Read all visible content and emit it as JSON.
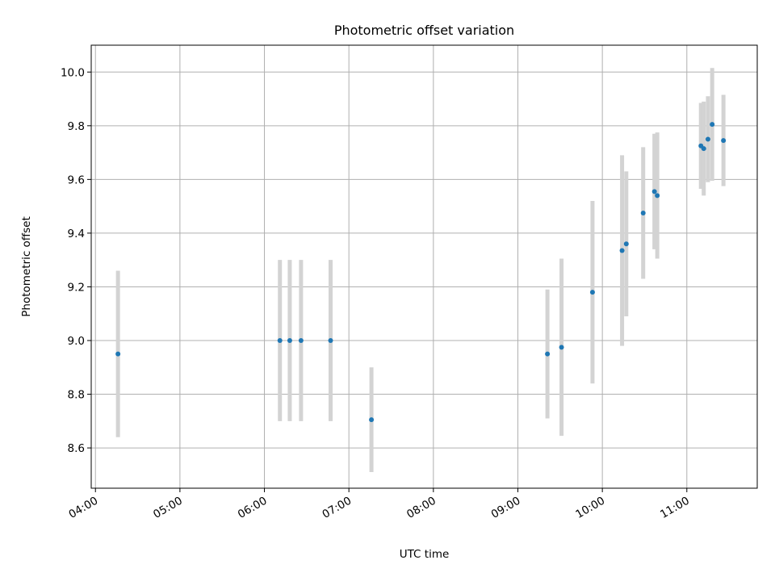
{
  "chart_data": {
    "type": "scatter",
    "title": "Photometric offset variation",
    "xlabel": "UTC time",
    "ylabel": "Photometric offset",
    "x_is_time": true,
    "xlim": [
      "03:57",
      "11:50"
    ],
    "ylim": [
      8.45,
      10.1
    ],
    "x_ticks": [
      "04:00",
      "05:00",
      "06:00",
      "07:00",
      "08:00",
      "09:00",
      "10:00",
      "11:00"
    ],
    "y_ticks": [
      8.6,
      8.8,
      9.0,
      9.2,
      9.4,
      9.6,
      9.8,
      10.0
    ],
    "y_tick_labels": [
      "8.6",
      "8.8",
      "9.0",
      "9.2",
      "9.4",
      "9.6",
      "9.8",
      "10.0"
    ],
    "grid": true,
    "x_tick_rotation_deg": 30,
    "colors": {
      "point": "#1f77b4",
      "errorbar": "#d3d3d3"
    },
    "series": [
      {
        "points": [
          {
            "x": "04:16",
            "y": 8.95,
            "yerr": 0.31
          },
          {
            "x": "06:11",
            "y": 9.0,
            "yerr": 0.3
          },
          {
            "x": "06:18",
            "y": 9.0,
            "yerr": 0.3
          },
          {
            "x": "06:26",
            "y": 9.0,
            "yerr": 0.3
          },
          {
            "x": "06:47",
            "y": 9.0,
            "yerr": 0.3
          },
          {
            "x": "07:16",
            "y": 8.705,
            "yerr": 0.195
          },
          {
            "x": "09:21",
            "y": 8.95,
            "yerr": 0.24
          },
          {
            "x": "09:31",
            "y": 8.975,
            "yerr": 0.33
          },
          {
            "x": "09:53",
            "y": 9.18,
            "yerr": 0.34
          },
          {
            "x": "10:14",
            "y": 9.335,
            "yerr": 0.355
          },
          {
            "x": "10:17",
            "y": 9.36,
            "yerr": 0.27
          },
          {
            "x": "10:29",
            "y": 9.475,
            "yerr": 0.245
          },
          {
            "x": "10:37",
            "y": 9.555,
            "yerr": 0.215
          },
          {
            "x": "10:39",
            "y": 9.54,
            "yerr": 0.235
          },
          {
            "x": "11:10",
            "y": 9.725,
            "yerr": 0.16
          },
          {
            "x": "11:12",
            "y": 9.715,
            "yerr": 0.175
          },
          {
            "x": "11:15",
            "y": 9.75,
            "yerr": 0.16
          },
          {
            "x": "11:18",
            "y": 9.805,
            "yerr": 0.21
          },
          {
            "x": "11:26",
            "y": 9.745,
            "yerr": 0.17
          }
        ]
      }
    ]
  }
}
